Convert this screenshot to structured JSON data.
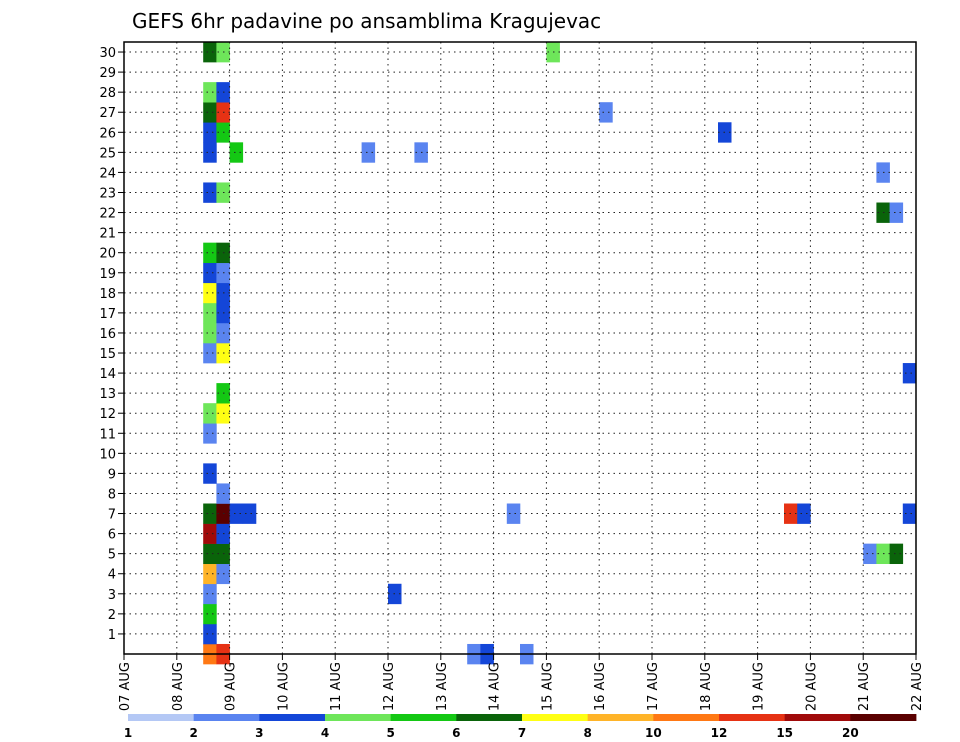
{
  "chart_data": {
    "type": "heatmap",
    "title": "GEFS 6hr padavine po ansamblima Kragujevac",
    "xlabel": "",
    "ylabel": "",
    "x_tick_labels": [
      "07 AUG",
      "08 AUG",
      "09 AUG",
      "10 AUG",
      "11 AUG",
      "12 AUG",
      "13 AUG",
      "14 AUG",
      "15 AUG",
      "16 AUG",
      "17 AUG",
      "18 AUG",
      "19 AUG",
      "20 AUG",
      "21 AUG",
      "22 AUG"
    ],
    "y_tick_labels": [
      "1",
      "2",
      "3",
      "4",
      "5",
      "6",
      "7",
      "8",
      "9",
      "10",
      "11",
      "12",
      "13",
      "14",
      "15",
      "16",
      "17",
      "18",
      "19",
      "20",
      "21",
      "22",
      "23",
      "24",
      "25",
      "26",
      "27",
      "28",
      "29",
      "30"
    ],
    "ylim": [
      0,
      30
    ],
    "time_step_hours": 6,
    "steps": 60,
    "grid": true,
    "legend": {
      "placement": "bottom",
      "labels": [
        "1",
        "2",
        "3",
        "4",
        "5",
        "6",
        "7",
        "8",
        "10",
        "12",
        "15",
        "20"
      ],
      "colors": [
        "#b4c8f5",
        "#5a84f0",
        "#1446d8",
        "#6ee65a",
        "#14c814",
        "#0a640a",
        "#ffff14",
        "#ffb428",
        "#ff7814",
        "#e63214",
        "#a00a0a",
        "#5a0000"
      ]
    },
    "cells": [
      {
        "member": 0,
        "step": 6,
        "level": 8
      },
      {
        "member": 0,
        "step": 7,
        "level": 9
      },
      {
        "member": 0,
        "step": 26,
        "level": 1
      },
      {
        "member": 0,
        "step": 27,
        "level": 2
      },
      {
        "member": 0,
        "step": 30,
        "level": 1
      },
      {
        "member": 1,
        "step": 6,
        "level": 2
      },
      {
        "member": 2,
        "step": 6,
        "level": 4
      },
      {
        "member": 3,
        "step": 6,
        "level": 1
      },
      {
        "member": 3,
        "step": 20,
        "level": 2
      },
      {
        "member": 4,
        "step": 6,
        "level": 7
      },
      {
        "member": 4,
        "step": 7,
        "level": 1
      },
      {
        "member": 5,
        "step": 6,
        "level": 5
      },
      {
        "member": 5,
        "step": 7,
        "level": 5
      },
      {
        "member": 5,
        "step": 56,
        "level": 1
      },
      {
        "member": 5,
        "step": 57,
        "level": 3
      },
      {
        "member": 5,
        "step": 58,
        "level": 5
      },
      {
        "member": 6,
        "step": 6,
        "level": 10
      },
      {
        "member": 6,
        "step": 7,
        "level": 2
      },
      {
        "member": 7,
        "step": 6,
        "level": 5
      },
      {
        "member": 7,
        "step": 7,
        "level": 11
      },
      {
        "member": 7,
        "step": 8,
        "level": 2
      },
      {
        "member": 7,
        "step": 9,
        "level": 2
      },
      {
        "member": 7,
        "step": 29,
        "level": 1
      },
      {
        "member": 7,
        "step": 50,
        "level": 9
      },
      {
        "member": 7,
        "step": 51,
        "level": 2
      },
      {
        "member": 7,
        "step": 59,
        "level": 2
      },
      {
        "member": 8,
        "step": 7,
        "level": 1
      },
      {
        "member": 9,
        "step": 6,
        "level": 2
      },
      {
        "member": 11,
        "step": 6,
        "level": 1
      },
      {
        "member": 12,
        "step": 6,
        "level": 3
      },
      {
        "member": 12,
        "step": 7,
        "level": 6
      },
      {
        "member": 13,
        "step": 7,
        "level": 4
      },
      {
        "member": 14,
        "step": 59,
        "level": 2
      },
      {
        "member": 15,
        "step": 6,
        "level": 1
      },
      {
        "member": 15,
        "step": 7,
        "level": 6
      },
      {
        "member": 16,
        "step": 6,
        "level": 3
      },
      {
        "member": 16,
        "step": 7,
        "level": 1
      },
      {
        "member": 17,
        "step": 6,
        "level": 3
      },
      {
        "member": 17,
        "step": 7,
        "level": 2
      },
      {
        "member": 18,
        "step": 6,
        "level": 6
      },
      {
        "member": 18,
        "step": 7,
        "level": 2
      },
      {
        "member": 19,
        "step": 6,
        "level": 2
      },
      {
        "member": 19,
        "step": 7,
        "level": 1
      },
      {
        "member": 20,
        "step": 6,
        "level": 4
      },
      {
        "member": 20,
        "step": 7,
        "level": 5
      },
      {
        "member": 22,
        "step": 57,
        "level": 5
      },
      {
        "member": 22,
        "step": 58,
        "level": 1
      },
      {
        "member": 23,
        "step": 6,
        "level": 2
      },
      {
        "member": 23,
        "step": 7,
        "level": 3
      },
      {
        "member": 24,
        "step": 57,
        "level": 1
      },
      {
        "member": 25,
        "step": 6,
        "level": 2
      },
      {
        "member": 25,
        "step": 8,
        "level": 4
      },
      {
        "member": 25,
        "step": 18,
        "level": 1
      },
      {
        "member": 25,
        "step": 22,
        "level": 1
      },
      {
        "member": 26,
        "step": 6,
        "level": 2
      },
      {
        "member": 26,
        "step": 7,
        "level": 4
      },
      {
        "member": 26,
        "step": 45,
        "level": 2
      },
      {
        "member": 27,
        "step": 6,
        "level": 5
      },
      {
        "member": 27,
        "step": 7,
        "level": 9
      },
      {
        "member": 27,
        "step": 36,
        "level": 1
      },
      {
        "member": 28,
        "step": 6,
        "level": 3
      },
      {
        "member": 28,
        "step": 7,
        "level": 2
      },
      {
        "member": 30,
        "step": 6,
        "level": 5
      },
      {
        "member": 30,
        "step": 7,
        "level": 3
      },
      {
        "member": 30,
        "step": 32,
        "level": 3
      }
    ]
  }
}
